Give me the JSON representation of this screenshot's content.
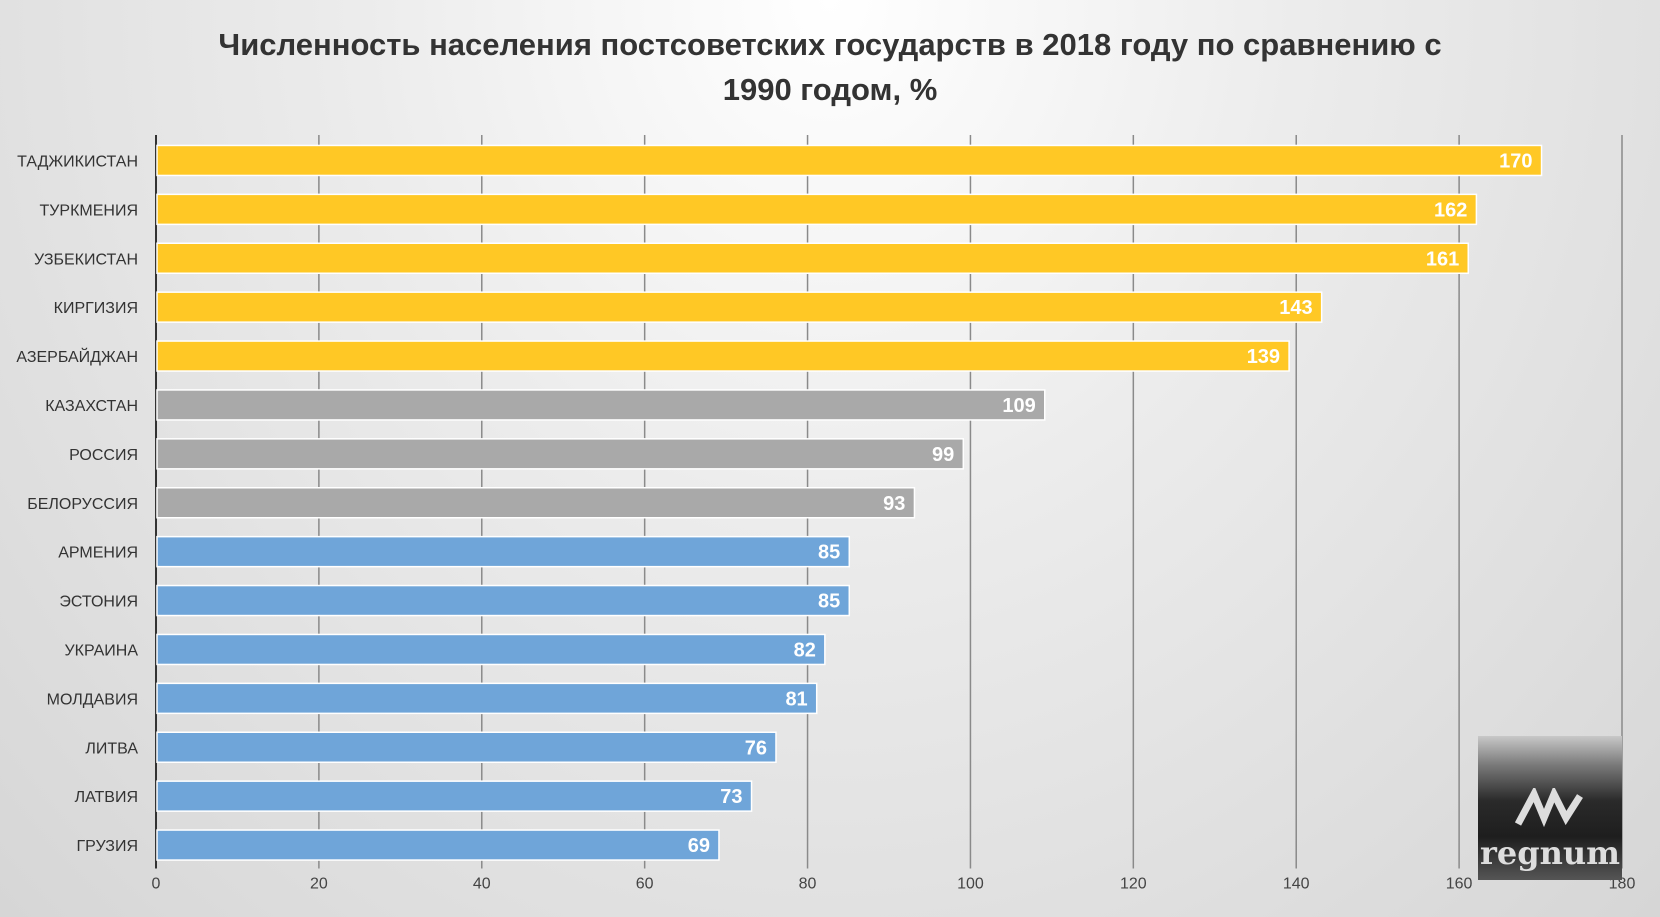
{
  "chart_data": {
    "type": "bar",
    "orientation": "horizontal",
    "title": "Численность населения постсоветских государств в 2018 году по сравнению с 1990 годом, %",
    "title_lines": [
      "Численность населения постсоветских государств в 2018 году по сравнению с",
      "1990 годом, %"
    ],
    "categories": [
      "ТАДЖИКИСТАН",
      "ТУРКМЕНИЯ",
      "УЗБЕКИСТАН",
      "КИРГИЗИЯ",
      "АЗЕРБАЙДЖАН",
      "КАЗАХСТАН",
      "РОССИЯ",
      "БЕЛОРУССИЯ",
      "АРМЕНИЯ",
      "ЭСТОНИЯ",
      "УКРАИНА",
      "МОЛДАВИЯ",
      "ЛИТВА",
      "ЛАТВИЯ",
      "ГРУЗИЯ"
    ],
    "values": [
      170,
      162,
      161,
      143,
      139,
      109,
      99,
      93,
      85,
      85,
      82,
      81,
      76,
      73,
      69
    ],
    "groups": [
      "growth",
      "growth",
      "growth",
      "growth",
      "growth",
      "stable",
      "stable",
      "stable",
      "decline",
      "decline",
      "decline",
      "decline",
      "decline",
      "decline",
      "decline"
    ],
    "colors": {
      "growth": "#FFC825",
      "stable": "#A9A9A9",
      "decline": "#6FA5D9"
    },
    "xlim": [
      0,
      180
    ],
    "xticks": [
      0,
      20,
      40,
      60,
      80,
      100,
      120,
      140,
      160,
      180
    ],
    "grid": true,
    "xlabel": "",
    "ylabel": ""
  },
  "logo": {
    "text": "regnum"
  }
}
